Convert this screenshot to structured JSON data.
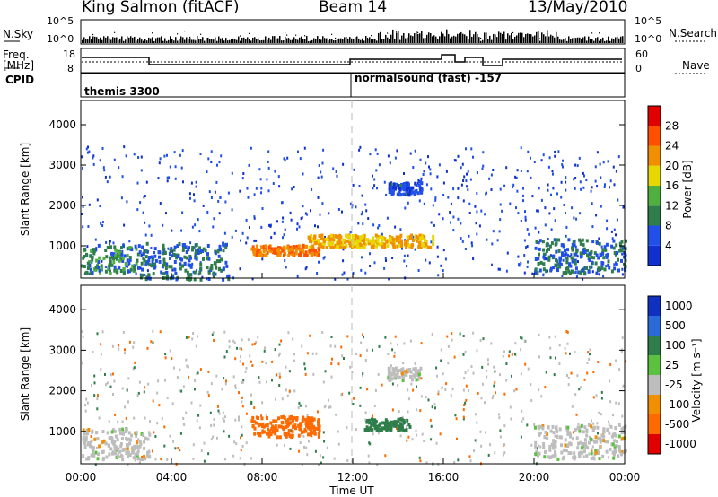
{
  "header": {
    "station": "King Salmon (fitACF)",
    "beam": "Beam 14",
    "date": "13/May/2010"
  },
  "strip": {
    "nsky_label": "N.Sky",
    "nsearch_label": "N.Search",
    "freq_label_1": "Freq.",
    "freq_label_2": "[MHz]",
    "nave_label": "Nave",
    "cpid_label": "CPID",
    "nsky_ticks_left": [
      "10^5",
      "10^0"
    ],
    "nsky_ticks_right": [
      "10^5",
      "10^0"
    ],
    "freq_ticks": [
      "18",
      "8"
    ],
    "nave_ticks": [
      "60",
      "0"
    ],
    "cpid_segments": [
      {
        "label": "themis 3300",
        "start_hour": 0
      },
      {
        "label": "normalsound (fast) -157",
        "start_hour": 12
      }
    ]
  },
  "colors": {
    "power_scale": [
      "#1030d0",
      "#2050e8",
      "#2e7d4a",
      "#4fb040",
      "#e6d800",
      "#f09000",
      "#ff5000",
      "#e00000"
    ],
    "velocity_scale": [
      "#1030c0",
      "#2a6ad8",
      "#2e7d4a",
      "#5cc040",
      "#bdbdbd",
      "#f09000",
      "#ff6a00",
      "#e00000"
    ]
  },
  "chart_data": [
    {
      "type": "heatmap",
      "panel": "power",
      "ylabel": "Slant Range [km]",
      "y_ticks": [
        "1000",
        "2000",
        "3000",
        "4000"
      ],
      "ylim": [
        200,
        4600
      ],
      "xlim_hours": [
        0,
        24
      ],
      "colorbar_label": "Power [dB]",
      "colorbar_ticks": [
        "4",
        "8",
        "12",
        "16",
        "20",
        "24",
        "28"
      ],
      "colorbar_range": [
        0,
        32
      ],
      "features": [
        {
          "hours": [
            0.0,
            2.5
          ],
          "range_km": [
            350,
            1050
          ],
          "value": 10
        },
        {
          "hours": [
            2.5,
            6.5
          ],
          "range_km": [
            200,
            1100
          ],
          "value": 8
        },
        {
          "hours": [
            7.5,
            10.5
          ],
          "range_km": [
            800,
            1050
          ],
          "value": 24
        },
        {
          "hours": [
            10.0,
            15.5
          ],
          "range_km": [
            1000,
            1300
          ],
          "value": 20
        },
        {
          "hours": [
            13.5,
            15.0
          ],
          "range_km": [
            2300,
            2600
          ],
          "value": 5
        },
        {
          "hours": [
            20.0,
            24.0
          ],
          "range_km": [
            350,
            1200
          ],
          "value": 8
        }
      ]
    },
    {
      "type": "heatmap",
      "panel": "velocity",
      "ylabel": "Slant Range [km]",
      "y_ticks": [
        "1000",
        "2000",
        "3000",
        "4000"
      ],
      "ylim": [
        200,
        4600
      ],
      "xlim_hours": [
        0,
        24
      ],
      "xlabel": "Time UT",
      "x_ticks": [
        "00:00",
        "04:00",
        "08:00",
        "12:00",
        "16:00",
        "20:00",
        "00:00"
      ],
      "colorbar_label": "Velocity [m s⁻¹]",
      "colorbar_ticks": [
        "1000",
        "500",
        "100",
        "25",
        "-25",
        "-100",
        "-500",
        "-1000"
      ],
      "features": [
        {
          "hours": [
            0.0,
            3.0
          ],
          "range_km": [
            350,
            1100
          ],
          "value": 0
        },
        {
          "hours": [
            7.5,
            10.5
          ],
          "range_km": [
            900,
            1400
          ],
          "value": -300
        },
        {
          "hours": [
            12.5,
            14.5
          ],
          "range_km": [
            1050,
            1350
          ],
          "value": 150
        },
        {
          "hours": [
            13.5,
            15.0
          ],
          "range_km": [
            2300,
            2600
          ],
          "value": 0
        },
        {
          "hours": [
            20.0,
            24.0
          ],
          "range_km": [
            350,
            1200
          ],
          "value": 0
        }
      ]
    }
  ]
}
